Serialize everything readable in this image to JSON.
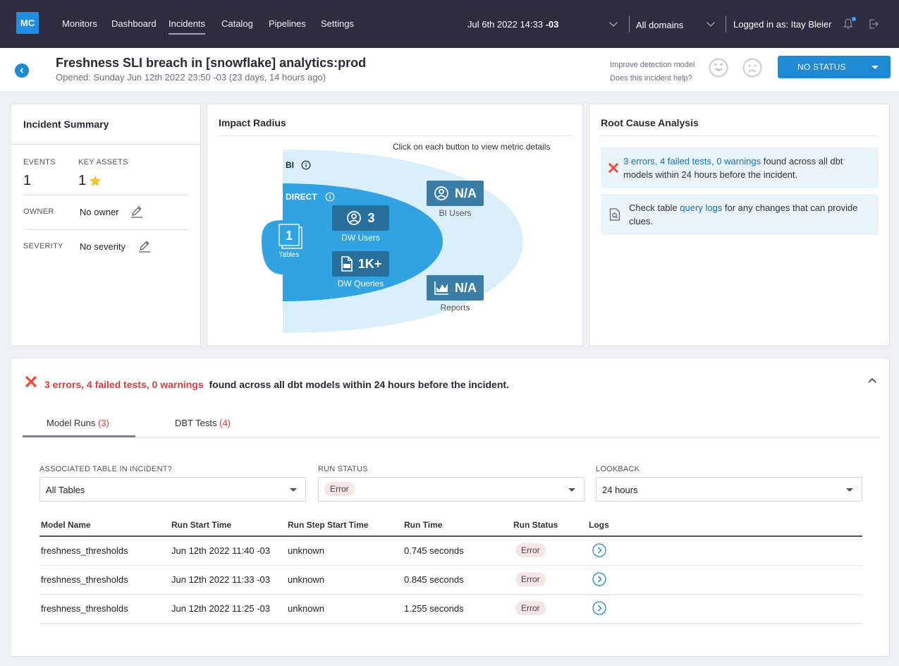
{
  "nav": {
    "logo": "MC",
    "items": [
      "Monitors",
      "Dashboard",
      "Incidents",
      "Catalog",
      "Pipelines",
      "Settings"
    ],
    "date_prefix": "Jul 6th 2022 14:33 ",
    "date_tz": "-03",
    "domains": "All domains",
    "user": "Logged in as: Itay Bleier"
  },
  "header": {
    "title": "Freshness SLI breach in [snowflake] analytics:prod",
    "subtitle": "Opened: Sunday Jun 12th 2022 23:50 -03 (23 days, 14 hours ago)",
    "improve_line1": "Improve detection model",
    "improve_line2": "Does this incident help?",
    "status": "NO STATUS"
  },
  "summary": {
    "title": "Incident Summary",
    "events_label": "EVENTS",
    "events_value": "1",
    "key_assets_label": "KEY ASSETS",
    "key_assets_value": "1",
    "owner_label": "OWNER",
    "owner_value": "No owner",
    "severity_label": "SEVERITY",
    "severity_value": "No severity"
  },
  "impact": {
    "title": "Impact Radius",
    "note": "Click on each button to view metric details",
    "bi_label": "BI",
    "direct_label": "DIRECT",
    "tables_value": "1",
    "tables_label": "Tables",
    "dw_users_value": "3",
    "dw_users_label": "DW Users",
    "dw_queries_value": "1K+",
    "dw_queries_label": "DW Queries",
    "bi_users_value": "N/A",
    "bi_users_label": "BI Users",
    "reports_value": "N/A",
    "reports_label": "Reports"
  },
  "rca": {
    "title": "Root Cause Analysis",
    "item1_link": "3 errors, 4 failed tests, 0 warnings",
    "item1_rest_1": " found across all dbt",
    "item1_rest_2": "models within 24 hours before the incident.",
    "item2_pre": "Check table ",
    "item2_link": "query logs",
    "item2_rest_1": " for any changes that can provide",
    "item2_rest_2": "clues."
  },
  "dbt": {
    "headline_err": "3 errors, 4 failed tests, 0 warnings",
    "headline_rest": "found across all dbt models within 24 hours before the incident.",
    "tabs": [
      {
        "label": "Model Runs",
        "count": "(3)"
      },
      {
        "label": "DBT Tests",
        "count": "(4)"
      }
    ],
    "filters": {
      "assoc_label": "ASSOCIATED TABLE IN INCIDENT?",
      "assoc_value": "All Tables",
      "status_label": "RUN STATUS",
      "status_value": "Error",
      "lookback_label": "LOOKBACK",
      "lookback_value": "24 hours"
    },
    "columns": [
      "Model Name",
      "Run Start Time",
      "Run Step Start Time",
      "Run Time",
      "Run Status",
      "Logs"
    ],
    "rows": [
      {
        "model": "freshness_thresholds",
        "start": "Jun 12th 2022 11:40 -03",
        "step": "unknown",
        "time": "0.745 seconds",
        "status": "Error"
      },
      {
        "model": "freshness_thresholds",
        "start": "Jun 12th 2022 11:33 -03",
        "step": "unknown",
        "time": "0.845 seconds",
        "status": "Error"
      },
      {
        "model": "freshness_thresholds",
        "start": "Jun 12th 2022 11:25 -03",
        "step": "unknown",
        "time": "1.255 seconds",
        "status": "Error"
      }
    ]
  }
}
